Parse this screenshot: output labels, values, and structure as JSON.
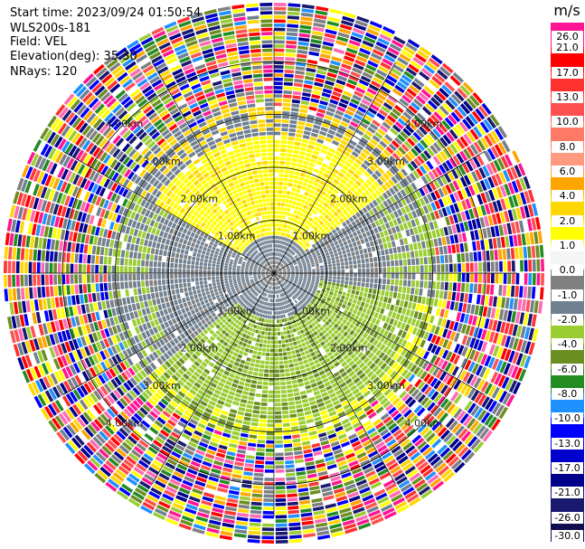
{
  "header": {
    "start_time": "Start time: 2023/09/24 01:50:54",
    "site": "WLS200s-181",
    "field": "Field: VEL",
    "elevation": "Elevation(deg): 35.30",
    "nrays": "NRays: 120"
  },
  "ring_labels": {
    "r1": "1.00km",
    "r2": "2.00km",
    "r3": "3.00km",
    "r4": "4.00km"
  },
  "colorbar": {
    "unit": "m/s",
    "ticks": [
      "26.0",
      "21.0",
      "17.0",
      "13.0",
      "10.0",
      "8.0",
      "6.0",
      "4.0",
      "2.0",
      "1.0",
      "0.0",
      "-1.0",
      "-2.0",
      "-4.0",
      "-6.0",
      "-8.0",
      "-10.0",
      "-13.0",
      "-17.0",
      "-21.0",
      "-26.0",
      "-30.0"
    ],
    "colors": [
      "#ff1493",
      "#ff0000",
      "#ff3030",
      "#ff5050",
      "#ff7a66",
      "#ff9a80",
      "#ffa500",
      "#ffd700",
      "#ffff00",
      "#f5f5f5",
      "#808080",
      "#708090",
      "#9acd32",
      "#6b8e23",
      "#228b22",
      "#1e90ff",
      "#0000ff",
      "#0000cd",
      "#00008b",
      "#191970",
      "#0f0f50"
    ]
  },
  "chart_data": {
    "type": "ppi-polar",
    "nrays": 120,
    "max_range_km": 5.2,
    "range_rings_km": [
      1,
      2,
      3,
      4
    ],
    "unit": "m/s",
    "vmin": -30.0,
    "vmax": 26.0
  }
}
